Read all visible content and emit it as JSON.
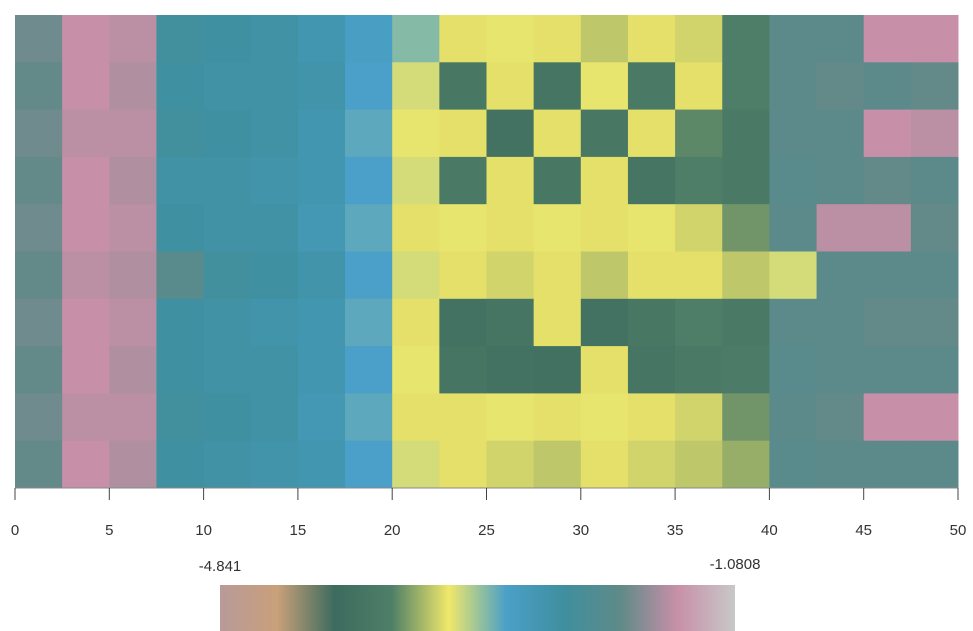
{
  "chart_data": {
    "type": "heatmap",
    "xbins": [
      0,
      2.5,
      5,
      7.5,
      10,
      12.5,
      15,
      17.5,
      20,
      22.5,
      25,
      27.5,
      30,
      32.5,
      35,
      37.5,
      40,
      42.5,
      45,
      47.5,
      50
    ],
    "z": [
      [
        -1.85,
        -1.5,
        -1.55,
        -2.3,
        -2.35,
        -2.4,
        -2.5,
        -2.7,
        -2.9,
        -3.2,
        -3.15,
        -3.2,
        -3.3,
        -3.2,
        -3.25,
        -3.6,
        -1.95,
        -1.95,
        -1.5,
        -1.5
      ],
      [
        -1.9,
        -1.5,
        -1.6,
        -2.35,
        -2.4,
        -2.4,
        -2.45,
        -2.75,
        -3.1,
        -3.75,
        -3.2,
        -3.8,
        -3.15,
        -3.7,
        -3.2,
        -3.6,
        -1.95,
        -1.9,
        -1.95,
        -1.9
      ],
      [
        -1.85,
        -1.55,
        -1.55,
        -2.3,
        -2.35,
        -2.4,
        -2.5,
        -2.8,
        -3.15,
        -3.2,
        -3.85,
        -3.2,
        -3.75,
        -3.2,
        -3.55,
        -3.7,
        -1.95,
        -1.95,
        -1.5,
        -1.55
      ],
      [
        -1.9,
        -1.5,
        -1.6,
        -2.4,
        -2.4,
        -2.45,
        -2.5,
        -2.75,
        -3.1,
        -3.7,
        -3.2,
        -3.75,
        -3.2,
        -3.8,
        -3.6,
        -3.7,
        -2.0,
        -1.95,
        -1.9,
        -1.95
      ],
      [
        -1.85,
        -1.5,
        -1.55,
        -2.35,
        -2.4,
        -2.4,
        -2.55,
        -2.8,
        -3.2,
        -3.15,
        -3.2,
        -3.15,
        -3.2,
        -3.15,
        -3.25,
        -3.5,
        -1.95,
        -1.55,
        -1.55,
        -1.9
      ],
      [
        -1.9,
        -1.55,
        -1.6,
        -2.0,
        -2.3,
        -2.35,
        -2.45,
        -2.75,
        -3.1,
        -3.2,
        -3.25,
        -3.2,
        -3.3,
        -3.2,
        -3.2,
        -3.3,
        -3.1,
        -1.95,
        -1.95,
        -1.95
      ],
      [
        -1.85,
        -1.5,
        -1.55,
        -2.35,
        -2.4,
        -2.45,
        -2.5,
        -2.8,
        -3.2,
        -3.85,
        -3.8,
        -3.2,
        -3.85,
        -3.75,
        -3.6,
        -3.7,
        -1.95,
        -1.95,
        -1.9,
        -1.9
      ],
      [
        -1.9,
        -1.5,
        -1.6,
        -2.35,
        -2.4,
        -2.4,
        -2.5,
        -2.75,
        -3.15,
        -3.8,
        -3.85,
        -3.9,
        -3.2,
        -3.8,
        -3.7,
        -3.65,
        -2.0,
        -1.95,
        -1.95,
        -1.95
      ],
      [
        -1.85,
        -1.55,
        -1.55,
        -2.3,
        -2.35,
        -2.4,
        -2.55,
        -2.8,
        -3.2,
        -3.2,
        -3.15,
        -3.2,
        -3.15,
        -3.2,
        -3.25,
        -3.5,
        -1.95,
        -1.9,
        -1.5,
        -1.5
      ],
      [
        -1.9,
        -1.5,
        -1.6,
        -2.35,
        -2.4,
        -2.45,
        -2.5,
        -2.75,
        -3.1,
        -3.2,
        -3.25,
        -3.3,
        -3.2,
        -3.25,
        -3.3,
        -3.4,
        -2.0,
        -1.95,
        -1.95,
        -1.95
      ]
    ],
    "xlim": [
      0,
      50
    ],
    "xticks": [
      0,
      5,
      10,
      15,
      20,
      25,
      30,
      35,
      40,
      45,
      50
    ],
    "zlim": [
      -4.841,
      -1.0808
    ],
    "colorscale": [
      "#b89a9a",
      "#c9a07a",
      "#3d6b5e",
      "#4f7f68",
      "#f0e86a",
      "#4aa0c8",
      "#3f8f9f",
      "#5f8a88",
      "#c890a8",
      "#c8c8c8"
    ]
  }
}
